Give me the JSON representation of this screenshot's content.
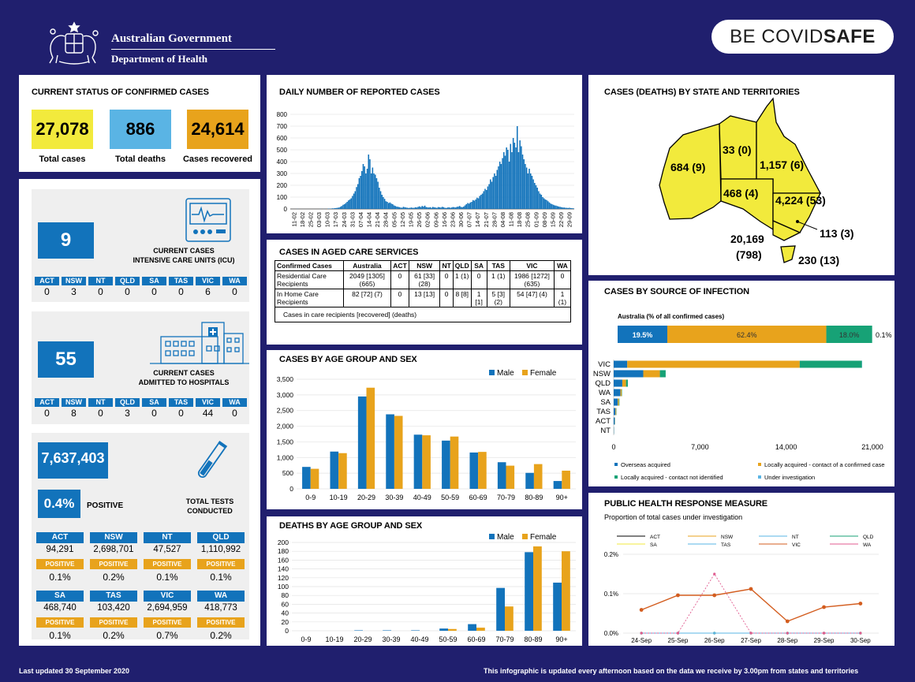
{
  "header": {
    "gov_line1": "Australian Government",
    "gov_line2": "Department of Health",
    "covid_be": "BE COVID",
    "covid_safe": "SAFE"
  },
  "footer": {
    "updated": "Last updated 30 September 2020",
    "note": "This infographic is updated every afternoon based on the data we receive by 3.00pm from states and territories"
  },
  "current_status": {
    "title": "CURRENT STATUS OF CONFIRMED CASES",
    "total_cases": "27,078",
    "total_cases_label": "Total cases",
    "total_deaths": "886",
    "total_deaths_label": "Total deaths",
    "recovered": "24,614",
    "recovered_label": "Cases recovered",
    "colors": {
      "cases": "#f2ea3c",
      "deaths": "#5ab4e4",
      "recovered": "#e8a31c"
    }
  },
  "icu": {
    "value": "9",
    "label1": "CURRENT CASES",
    "label2": "INTENSIVE CARE UNITS (ICU)",
    "states": [
      "ACT",
      "NSW",
      "NT",
      "QLD",
      "SA",
      "TAS",
      "VIC",
      "WA"
    ],
    "values": [
      "0",
      "3",
      "0",
      "0",
      "0",
      "0",
      "6",
      "0"
    ]
  },
  "hospital": {
    "value": "55",
    "label1": "CURRENT CASES",
    "label2": "ADMITTED TO HOSPITALS",
    "states": [
      "ACT",
      "NSW",
      "NT",
      "QLD",
      "SA",
      "TAS",
      "VIC",
      "WA"
    ],
    "values": [
      "0",
      "8",
      "0",
      "3",
      "0",
      "0",
      "44",
      "0"
    ]
  },
  "tests": {
    "total": "7,637,403",
    "positive_pct": "0.4%",
    "positive_label": "POSITIVE",
    "label1": "TOTAL TESTS",
    "label2": "CONDUCTED",
    "positive_tag": "POSITIVE",
    "states": [
      {
        "name": "ACT",
        "tests": "94,291",
        "pct": "0.1%"
      },
      {
        "name": "NSW",
        "tests": "2,698,701",
        "pct": "0.2%"
      },
      {
        "name": "NT",
        "tests": "47,527",
        "pct": "0.1%"
      },
      {
        "name": "QLD",
        "tests": "1,110,992",
        "pct": "0.1%"
      },
      {
        "name": "SA",
        "tests": "468,740",
        "pct": "0.1%"
      },
      {
        "name": "TAS",
        "tests": "103,420",
        "pct": "0.2%"
      },
      {
        "name": "VIC",
        "tests": "2,694,959",
        "pct": "0.7%"
      },
      {
        "name": "WA",
        "tests": "418,773",
        "pct": "0.2%"
      }
    ]
  },
  "daily": {
    "title": "DAILY NUMBER OF REPORTED CASES"
  },
  "aged": {
    "title": "CASES IN AGED CARE SERVICES",
    "headers": [
      "Confirmed Cases",
      "Australia",
      "ACT",
      "NSW",
      "NT",
      "QLD",
      "SA",
      "TAS",
      "VIC",
      "WA"
    ],
    "row1": [
      "Residential Care Recipients",
      "2049 [1305] (665)",
      "0",
      "61 [33] (28)",
      "0",
      "1 (1)",
      "0",
      "1 (1)",
      "1986 [1272] (635)",
      "0"
    ],
    "row2": [
      "In Home Care Recipients",
      "82 [72] (7)",
      "0",
      "13 [13]",
      "0",
      "8 [8]",
      "1 [1]",
      "5 [3] (2)",
      "54 [47] (4)",
      "1 (1)"
    ],
    "note": "Cases in care recipients [recovered] (deaths)"
  },
  "map": {
    "title": "CASES (DEATHS) BY STATE AND TERRITORIES",
    "wa": "684 (9)",
    "nt": "33 (0)",
    "qld": "1,157 (6)",
    "sa": "468 (4)",
    "nsw": "4,224 (53)",
    "act": "113 (3)",
    "vic1": "20,169",
    "vic2": "(798)",
    "tas": "230 (13)",
    "fill": "#f2ea3c"
  },
  "source": {
    "title": "CASES BY SOURCE OF INFECTION",
    "subtitle": "Australia (% of all confirmed cases)",
    "pct_overseas": "19.5%",
    "pct_local_known": "62.4%",
    "pct_local_unknown": "18.0%",
    "pct_investigation": "0.1%",
    "legend": [
      "Overseas acquired",
      "Locally acquired - contact of a confirmed case",
      "Locally acquired - contact not identified",
      "Under investigation"
    ],
    "colors": [
      "#1273bb",
      "#e8a31c",
      "#17a276",
      "#5ab4e4"
    ]
  },
  "public": {
    "title": "PUBLIC HEALTH RESPONSE MEASURE",
    "subtitle": "Proportion of total cases under investigation"
  },
  "chart_data": [
    {
      "type": "bar",
      "title": "DAILY NUMBER OF REPORTED CASES",
      "ylim": [
        0,
        800
      ],
      "yticks": [
        0,
        100,
        200,
        300,
        400,
        500,
        600,
        700,
        800
      ],
      "xticks": [
        "11-02",
        "18-02",
        "25-02",
        "03-03",
        "10-03",
        "17-03",
        "24-03",
        "31-03",
        "07-04",
        "14-04",
        "21-04",
        "28-04",
        "05-05",
        "12-05",
        "19-05",
        "26-05",
        "02-06",
        "09-06",
        "16-06",
        "23-06",
        "30-06",
        "07-07",
        "14-07",
        "21-07",
        "28-07",
        "04-08",
        "11-08",
        "18-08",
        "25-08",
        "01-09",
        "08-09",
        "15-09",
        "22-09",
        "29-09"
      ],
      "values": [
        0,
        0,
        0,
        0,
        0,
        1,
        0,
        0,
        0,
        0,
        0,
        0,
        0,
        0,
        0,
        0,
        0,
        0,
        0,
        0,
        0,
        0,
        1,
        0,
        0,
        1,
        0,
        0,
        3,
        2,
        2,
        5,
        5,
        7,
        8,
        10,
        12,
        18,
        25,
        35,
        40,
        50,
        60,
        72,
        80,
        90,
        110,
        130,
        150,
        185,
        210,
        260,
        280,
        320,
        380,
        360,
        300,
        340,
        460,
        420,
        300,
        350,
        300,
        290,
        260,
        230,
        180,
        150,
        120,
        100,
        85,
        65,
        60,
        50,
        55,
        45,
        40,
        30,
        25,
        20,
        18,
        15,
        12,
        10,
        18,
        15,
        12,
        10,
        8,
        10,
        12,
        9,
        10,
        14,
        12,
        18,
        22,
        16,
        25,
        20,
        28,
        16,
        14,
        12,
        15,
        10,
        17,
        14,
        12,
        9,
        16,
        14,
        12,
        18,
        15,
        10,
        8,
        12,
        14,
        10,
        12,
        16,
        15,
        12,
        18,
        20,
        25,
        17,
        15,
        20,
        30,
        40,
        50,
        45,
        55,
        60,
        75,
        70,
        80,
        95,
        90,
        110,
        120,
        130,
        150,
        170,
        160,
        190,
        210,
        250,
        230,
        270,
        300,
        280,
        330,
        360,
        400,
        380,
        430,
        480,
        450,
        520,
        500,
        400,
        550,
        480,
        600,
        560,
        520,
        700,
        480,
        580,
        530,
        460,
        420,
        380,
        350,
        300,
        340,
        300,
        280,
        250,
        220,
        200,
        180,
        150,
        130,
        120,
        100,
        90,
        80,
        75,
        65,
        55,
        45,
        40,
        35,
        30,
        28,
        24,
        20,
        18,
        15,
        12,
        12,
        10,
        9,
        8,
        10,
        7,
        6,
        5
      ]
    },
    {
      "type": "bar",
      "title": "CASES BY AGE GROUP AND SEX",
      "categories": [
        "0-9",
        "10-19",
        "20-29",
        "30-39",
        "40-49",
        "50-59",
        "60-69",
        "70-79",
        "80-89",
        "90+"
      ],
      "ylim": [
        0,
        3500
      ],
      "yticks": [
        "0",
        "500",
        "1,000",
        "1,500",
        "2,000",
        "2,500",
        "3,000",
        "3,500"
      ],
      "series": [
        {
          "name": "Male",
          "color": "#1273bb",
          "values": [
            700,
            1190,
            2950,
            2380,
            1730,
            1540,
            1160,
            850,
            510,
            250
          ]
        },
        {
          "name": "Female",
          "color": "#e8a31c",
          "values": [
            640,
            1140,
            3230,
            2330,
            1710,
            1670,
            1180,
            740,
            790,
            580
          ]
        }
      ]
    },
    {
      "type": "bar",
      "title": "DEATHS BY AGE GROUP AND SEX",
      "categories": [
        "0-9",
        "10-19",
        "20-29",
        "30-39",
        "40-49",
        "50-59",
        "60-69",
        "70-79",
        "80-89",
        "90+"
      ],
      "ylim": [
        0,
        200
      ],
      "yticks": [
        "0",
        "20",
        "40",
        "60",
        "80",
        "100",
        "120",
        "140",
        "160",
        "180",
        "200"
      ],
      "series": [
        {
          "name": "Male",
          "color": "#1273bb",
          "values": [
            0,
            0,
            1,
            1,
            1,
            5,
            15,
            97,
            178,
            109
          ]
        },
        {
          "name": "Female",
          "color": "#e8a31c",
          "values": [
            0,
            0,
            0,
            0,
            0,
            4,
            7,
            55,
            191,
            180
          ]
        }
      ]
    },
    {
      "type": "bar",
      "title": "CASES BY SOURCE OF INFECTION",
      "categories": [
        "VIC",
        "NSW",
        "QLD",
        "WA",
        "SA",
        "TAS",
        "ACT",
        "NT"
      ],
      "xlim": [
        0,
        21000
      ],
      "xticks": [
        "0",
        "7,000",
        "14,000",
        "21,000"
      ],
      "series": [
        {
          "name": "Overseas acquired",
          "values": [
            1100,
            2400,
            700,
            550,
            330,
            150,
            90,
            25
          ]
        },
        {
          "name": "Locally acquired - contact of a confirmed case",
          "values": [
            14000,
            1350,
            300,
            100,
            90,
            60,
            15,
            5
          ]
        },
        {
          "name": "Locally acquired - contact not identified",
          "values": [
            5050,
            470,
            150,
            30,
            45,
            20,
            8,
            3
          ]
        },
        {
          "name": "Under investigation",
          "values": [
            19,
            0,
            0,
            0,
            0,
            0,
            0,
            0
          ]
        }
      ]
    },
    {
      "type": "line",
      "title": "PUBLIC HEALTH RESPONSE MEASURE",
      "x": [
        "24-Sep",
        "25-Sep",
        "26-Sep",
        "27-Sep",
        "28-Sep",
        "29-Sep",
        "30-Sep"
      ],
      "ylim": [
        0,
        0.2
      ],
      "yticks": [
        "0.0%",
        "0.1%",
        "0.2%"
      ],
      "series": [
        {
          "name": "ACT",
          "color": "#000000",
          "values": [
            0,
            0,
            0,
            0,
            0,
            0,
            0
          ]
        },
        {
          "name": "NSW",
          "color": "#e8a31c",
          "values": [
            0,
            0,
            0,
            0,
            0,
            0,
            0
          ]
        },
        {
          "name": "NT",
          "color": "#5ab4e4",
          "values": [
            0,
            0,
            0,
            0,
            0,
            0,
            0
          ]
        },
        {
          "name": "QLD",
          "color": "#17a276",
          "values": [
            0,
            0,
            0,
            0,
            0,
            0,
            0
          ]
        },
        {
          "name": "SA",
          "color": "#f2ea3c",
          "values": [
            0,
            0,
            0,
            0,
            0,
            0,
            0
          ]
        },
        {
          "name": "TAS",
          "color": "#5ab4e4",
          "values": [
            0,
            0,
            0,
            0,
            0,
            0,
            0
          ]
        },
        {
          "name": "VIC",
          "color": "#d35d1f",
          "values": [
            0.059,
            0.096,
            0.096,
            0.112,
            0.03,
            0.066,
            0.075
          ]
        },
        {
          "name": "WA",
          "color": "#e05b8f",
          "values": [
            0,
            0,
            0.15,
            0,
            0,
            0,
            0
          ]
        }
      ]
    }
  ]
}
